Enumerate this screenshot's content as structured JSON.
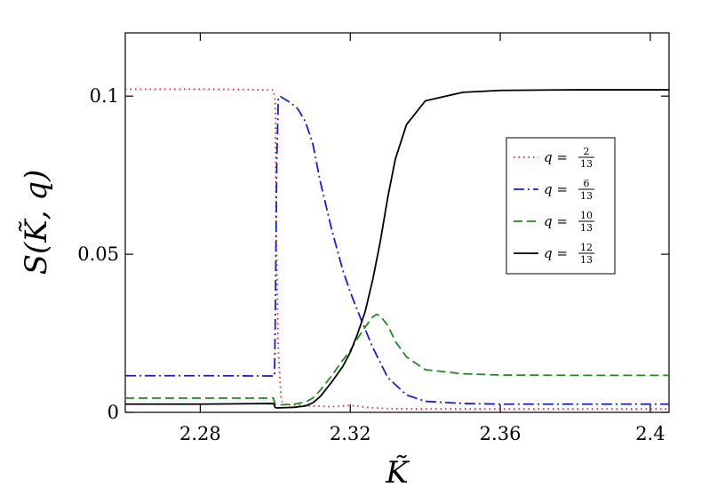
{
  "chart_data": {
    "type": "line",
    "xlabel": "K̃",
    "ylabel": "S(K̃, q)",
    "xlim": [
      2.26,
      2.405
    ],
    "ylim": [
      0,
      0.12
    ],
    "xticks": [
      {
        "value": 2.28,
        "label": "2.28"
      },
      {
        "value": 2.32,
        "label": "2.32"
      },
      {
        "value": 2.36,
        "label": "2.36"
      },
      {
        "value": 2.4,
        "label": "2.4"
      }
    ],
    "yticks": [
      {
        "value": 0,
        "label": "0"
      },
      {
        "value": 0.05,
        "label": "0.05"
      },
      {
        "value": 0.1,
        "label": "0.1"
      }
    ],
    "legend_position": "right",
    "series": [
      {
        "name": "q = 2/13",
        "q_num": "2",
        "q_den": "13",
        "color": "#e8202a",
        "dash": "dotted",
        "x": [
          2.26,
          2.28,
          2.29,
          2.2995,
          2.3,
          2.3002,
          2.3008,
          2.3015,
          2.302,
          2.306,
          2.31,
          2.315,
          2.32,
          2.325,
          2.33,
          2.34,
          2.36,
          2.38,
          2.405
        ],
        "y": [
          0.1022,
          0.1022,
          0.1021,
          0.1019,
          0.098,
          0.06,
          0.02,
          0.005,
          0.0025,
          0.0023,
          0.002,
          0.0018,
          0.0022,
          0.0015,
          0.0012,
          0.0011,
          0.0011,
          0.0011,
          0.0011
        ]
      },
      {
        "name": "q = 6/13",
        "q_num": "6",
        "q_den": "13",
        "color": "#1a1adc",
        "dash": "dashdot",
        "x": [
          2.26,
          2.28,
          2.2998,
          2.3,
          2.3004,
          2.3008,
          2.3012,
          2.304,
          2.306,
          2.308,
          2.31,
          2.312,
          2.315,
          2.318,
          2.32,
          2.323,
          2.326,
          2.33,
          2.335,
          2.34,
          2.35,
          2.36,
          2.38,
          2.405
        ],
        "y": [
          0.0116,
          0.0116,
          0.0115,
          0.03,
          0.08,
          0.099,
          0.1,
          0.098,
          0.096,
          0.092,
          0.085,
          0.073,
          0.058,
          0.045,
          0.038,
          0.029,
          0.0205,
          0.011,
          0.0055,
          0.0035,
          0.0028,
          0.0026,
          0.0026,
          0.0026
        ]
      },
      {
        "name": "q = 10/13",
        "q_num": "10",
        "q_den": "13",
        "color": "#1f8c1f",
        "dash": "dashed",
        "x": [
          2.26,
          2.28,
          2.2995,
          2.3,
          2.3005,
          2.305,
          2.308,
          2.31,
          2.312,
          2.315,
          2.318,
          2.32,
          2.322,
          2.324,
          2.326,
          2.327,
          2.328,
          2.33,
          2.332,
          2.335,
          2.34,
          2.35,
          2.36,
          2.38,
          2.405
        ],
        "y": [
          0.0045,
          0.0045,
          0.0045,
          0.0025,
          0.0023,
          0.0026,
          0.0032,
          0.0045,
          0.007,
          0.0115,
          0.0165,
          0.0195,
          0.0235,
          0.027,
          0.0302,
          0.031,
          0.0305,
          0.0275,
          0.0225,
          0.0175,
          0.0135,
          0.0122,
          0.0118,
          0.0117,
          0.0117
        ]
      },
      {
        "name": "q = 12/13",
        "q_num": "12",
        "q_den": "13",
        "color": "#000000",
        "dash": "solid",
        "x": [
          2.26,
          2.28,
          2.2995,
          2.3,
          2.3005,
          2.303,
          2.305,
          2.308,
          2.31,
          2.312,
          2.315,
          2.318,
          2.32,
          2.322,
          2.324,
          2.326,
          2.328,
          2.33,
          2.332,
          2.335,
          2.34,
          2.35,
          2.36,
          2.38,
          2.405
        ],
        "y": [
          0.0026,
          0.0026,
          0.0028,
          0.0015,
          0.0014,
          0.0015,
          0.0016,
          0.002,
          0.003,
          0.005,
          0.0095,
          0.0145,
          0.019,
          0.025,
          0.032,
          0.042,
          0.054,
          0.068,
          0.08,
          0.091,
          0.0985,
          0.1012,
          0.1018,
          0.102,
          0.102
        ]
      }
    ]
  }
}
